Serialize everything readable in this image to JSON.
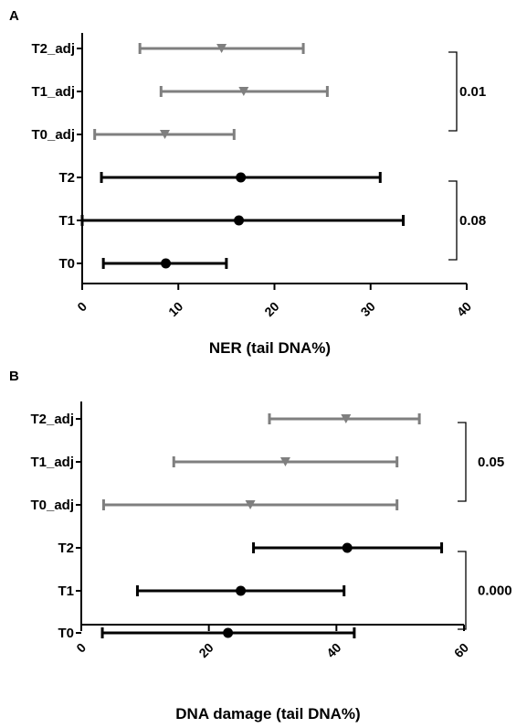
{
  "chart_data": [
    {
      "panel": "A",
      "type": "scatter",
      "categories": [
        "T2_adj",
        "T1_adj",
        "T0_adj",
        "T2",
        "T1",
        "T0"
      ],
      "xlabel": "NER (tail DNA%)",
      "xlim": [
        0,
        40
      ],
      "xticks": [
        0,
        10,
        20,
        30,
        40
      ],
      "grid": false,
      "series": [
        {
          "marker": "triangle-down",
          "color": "#7f7f7f",
          "points": [
            {
              "category": "T2_adj",
              "center": 14.5,
              "low": 6.0,
              "high": 23.0
            },
            {
              "category": "T1_adj",
              "center": 16.8,
              "low": 8.2,
              "high": 25.5
            },
            {
              "category": "T0_adj",
              "center": 8.6,
              "low": 1.3,
              "high": 15.8
            }
          ]
        },
        {
          "marker": "circle",
          "color": "#000000",
          "points": [
            {
              "category": "T2",
              "center": 16.5,
              "low": 2.0,
              "high": 31.0
            },
            {
              "category": "T1",
              "center": 16.3,
              "low": 0.0,
              "high": 33.4
            },
            {
              "category": "T0",
              "center": 8.7,
              "low": 2.2,
              "high": 15.0
            }
          ]
        }
      ],
      "annotations": [
        {
          "text": "0.01",
          "categories": [
            "T2_adj",
            "T0_adj"
          ]
        },
        {
          "text": "0.08",
          "categories": [
            "T2",
            "T0"
          ]
        }
      ]
    },
    {
      "panel": "B",
      "type": "scatter",
      "categories": [
        "T2_adj",
        "T1_adj",
        "T0_adj",
        "T2",
        "T1",
        "T0"
      ],
      "xlabel": "DNA damage (tail DNA%)",
      "xlim": [
        0,
        60
      ],
      "xticks": [
        0,
        20,
        40,
        60
      ],
      "grid": false,
      "series": [
        {
          "marker": "triangle-down",
          "color": "#7f7f7f",
          "points": [
            {
              "category": "T2_adj",
              "center": 41.5,
              "low": 29.5,
              "high": 53.0
            },
            {
              "category": "T1_adj",
              "center": 32.0,
              "low": 14.5,
              "high": 49.5
            },
            {
              "category": "T0_adj",
              "center": 26.5,
              "low": 3.5,
              "high": 49.5
            }
          ]
        },
        {
          "marker": "circle",
          "color": "#000000",
          "points": [
            {
              "category": "T2",
              "center": 41.7,
              "low": 27.0,
              "high": 56.5
            },
            {
              "category": "T1",
              "center": 25.0,
              "low": 8.8,
              "high": 41.2
            },
            {
              "category": "T0",
              "center": 23.0,
              "low": 3.3,
              "high": 42.8
            }
          ]
        }
      ],
      "annotations": [
        {
          "text": "0.05",
          "categories": [
            "T2_adj",
            "T0_adj"
          ]
        },
        {
          "text": "0.000",
          "categories": [
            "T2",
            "T0"
          ]
        }
      ]
    }
  ]
}
